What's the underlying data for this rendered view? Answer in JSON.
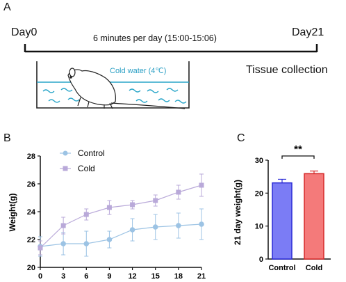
{
  "panel_a": {
    "letter": "A",
    "start": "Day0",
    "end": "Day21",
    "duration": "6 minutes per day (15:00-15:06)",
    "water_label": "Cold water (4℃)",
    "tissue": "Tissue collection"
  },
  "panel_b": {
    "letter": "B"
  },
  "panel_c": {
    "letter": "C"
  },
  "chart_data": [
    {
      "type": "line",
      "ylabel": "Weight(g)",
      "xlabel": "",
      "x": [
        0,
        3,
        6,
        9,
        12,
        15,
        18,
        21
      ],
      "xlim": [
        0,
        21
      ],
      "ylim": [
        20,
        28
      ],
      "yticks": [
        20,
        22,
        24,
        26,
        28
      ],
      "legend_position": "top-left",
      "grid": false,
      "series": [
        {
          "name": "Control",
          "color": "#9cc3e4",
          "marker": "circle",
          "values": [
            21.5,
            21.7,
            21.7,
            22.0,
            22.7,
            22.9,
            23.0,
            23.1
          ],
          "errors": [
            0.7,
            0.8,
            0.9,
            0.6,
            0.8,
            0.9,
            0.9,
            1.1
          ]
        },
        {
          "name": "Cold",
          "color": "#b9a9d9",
          "marker": "square",
          "values": [
            21.4,
            23.0,
            23.8,
            24.3,
            24.5,
            24.8,
            25.4,
            25.9
          ],
          "errors": [
            0.5,
            0.6,
            0.4,
            0.5,
            0.3,
            0.4,
            0.5,
            0.8
          ]
        }
      ]
    },
    {
      "type": "bar",
      "ylabel": "21 day weight(g)",
      "categories": [
        "Control",
        "Cold"
      ],
      "values": [
        23.1,
        25.9
      ],
      "errors": [
        1.1,
        0.8
      ],
      "colors": [
        "#7b7cf5",
        "#f47a7a"
      ],
      "edge_colors": [
        "#2b2bd6",
        "#d62b2b"
      ],
      "ylim": [
        0,
        30
      ],
      "yticks": [
        0,
        10,
        20,
        30
      ],
      "significance": "**"
    }
  ]
}
